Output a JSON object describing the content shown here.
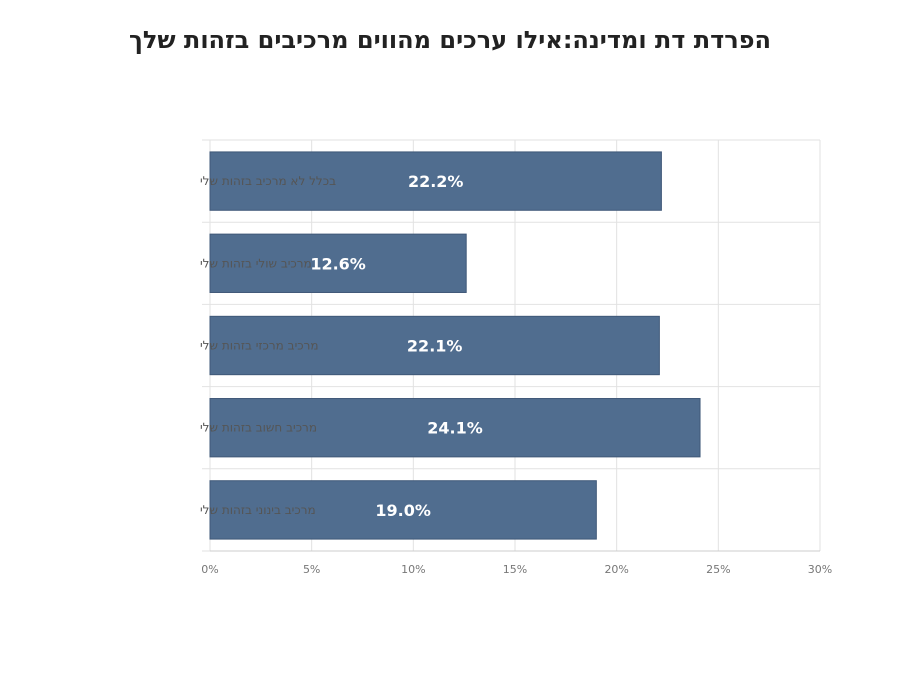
{
  "chart_data": {
    "type": "bar",
    "orientation": "horizontal",
    "title": "הפרדת דת ומדינה:אילו ערכים מהווים מרכיבים בזהות שלך",
    "categories": [
      "בכלל לא מרכיב בזהות שלי",
      "מרכיב שולי בזהות שלי",
      "מרכיב מרכזי בזהות שלי",
      "מרכיב חשוב בזהות שלי",
      "מרכיב בינוני בזהות שלי"
    ],
    "values": [
      22.2,
      12.6,
      22.1,
      24.1,
      19.0
    ],
    "value_labels": [
      "22.2%",
      "12.6%",
      "22.1%",
      "24.1%",
      "19.0%"
    ],
    "xlim": [
      0,
      30
    ],
    "x_ticks": [
      0,
      5,
      10,
      15,
      20,
      25,
      30
    ],
    "x_tick_labels": [
      "0%",
      "5%",
      "10%",
      "15%",
      "20%",
      "25%",
      "30%"
    ],
    "grid": true,
    "colors": {
      "bar": "#506d8f",
      "bar_edge": "#3f5878",
      "grid": "#e2e2e2",
      "axis": "#cccccc"
    }
  }
}
